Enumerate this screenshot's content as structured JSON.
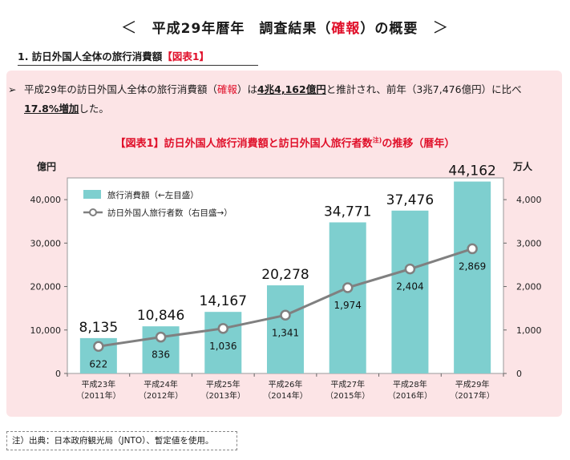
{
  "header": {
    "title_left": "平成29年暦年",
    "title_mid_prefix": "調査結果（",
    "title_mid_red": "確報",
    "title_mid_suffix": "）の概要"
  },
  "section": {
    "heading_prefix": "1. 訪日外国人全体の旅行消費額",
    "heading_red": "【図表1】"
  },
  "summary": {
    "bullet": "➢",
    "part1": "平成29年の訪日外国人全体の旅行消費額（",
    "red": "確報",
    "part2": "）は",
    "total": "4兆4,162億円",
    "part3": "と推計され、前年（3兆7,476億円）に比べ",
    "growth": "17.8%増加",
    "part4": "した。"
  },
  "chart_title": {
    "main": "【図表1】訪日外国人旅行消費額と訪日外国人旅行者数",
    "sup": "注)",
    "tail": "の推移（暦年）"
  },
  "chart_data": {
    "type": "bar",
    "categories": [
      [
        "平成23年",
        "（2011年）"
      ],
      [
        "平成24年",
        "（2012年）"
      ],
      [
        "平成25年",
        "（2013年）"
      ],
      [
        "平成26年",
        "（2014年）"
      ],
      [
        "平成27年",
        "（2015年）"
      ],
      [
        "平成28年",
        "（2016年）"
      ],
      [
        "平成29年",
        "（2017年）"
      ]
    ],
    "bars": {
      "name": "旅行消費額（←左目盛）",
      "values": [
        8135,
        10846,
        14167,
        20278,
        34771,
        37476,
        44162
      ],
      "labels": [
        "8,135",
        "10,846",
        "14,167",
        "20,278",
        "34,771",
        "37,476",
        "44,162"
      ],
      "color": "#7ecfcf"
    },
    "line": {
      "name": "訪日外国人旅行者数（右目盛→）",
      "values": [
        622,
        836,
        1036,
        1341,
        1974,
        2404,
        2869
      ],
      "labels": [
        "622",
        "836",
        "1,036",
        "1,341",
        "1,974",
        "2,404",
        "2,869"
      ],
      "color": "#808080"
    },
    "y_left": {
      "unit": "億円",
      "min": 0,
      "max": 45000,
      "ticks": [
        0,
        10000,
        20000,
        30000,
        40000
      ],
      "tick_labels": [
        "0",
        "10,000",
        "20,000",
        "30,000",
        "40,000"
      ]
    },
    "y_right": {
      "unit": "万人",
      "min": 0,
      "max": 4500,
      "ticks": [
        0,
        1000,
        2000,
        3000,
        4000
      ],
      "tick_labels": [
        "0",
        "1,000",
        "2,000",
        "3,000",
        "4,000"
      ]
    },
    "legend_position": "top-left",
    "grid": false
  },
  "footer": {
    "note": "注）出典：日本政府観光局（JNTO）、暫定値を使用。"
  }
}
